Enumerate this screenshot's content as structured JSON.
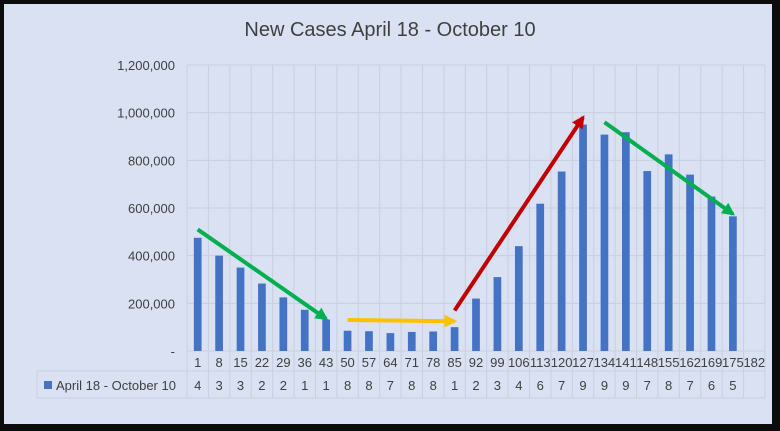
{
  "chart_data": {
    "type": "bar",
    "title": "New Cases April 18 - October 10",
    "xlabel": "",
    "ylabel": "",
    "ylim": [
      0,
      1200000
    ],
    "yticks": [
      0,
      200000,
      400000,
      600000,
      800000,
      1000000,
      1200000
    ],
    "ytick_labels": [
      "-",
      "200,000",
      "400,000",
      "600,000",
      "800,000",
      "1,000,000",
      "1,200,000"
    ],
    "grid": true,
    "legend_position": "data-table-left",
    "categories": [
      "1",
      "8",
      "15",
      "22",
      "29",
      "36",
      "43",
      "50",
      "57",
      "64",
      "71",
      "78",
      "85",
      "92",
      "99",
      "106",
      "113",
      "120",
      "127",
      "134",
      "141",
      "148",
      "155",
      "162",
      "169",
      "175",
      "182"
    ],
    "series": [
      {
        "name": "April 18 - October 10",
        "color": "#4472c4",
        "values": [
          475000,
          400000,
          350000,
          283000,
          225000,
          173000,
          132000,
          85000,
          83000,
          75000,
          80000,
          82000,
          100000,
          220000,
          310000,
          440000,
          618000,
          753000,
          950000,
          908000,
          918000,
          755000,
          825000,
          740000,
          648000,
          565000,
          null
        ],
        "table_values": [
          "4",
          "3",
          "3",
          "2",
          "2",
          "1",
          "1",
          "8",
          "8",
          "7",
          "8",
          "8",
          "1",
          "2",
          "3",
          "4",
          "6",
          "7",
          "9",
          "9",
          "9",
          "7",
          "8",
          "7",
          "6",
          "5",
          ""
        ]
      }
    ],
    "annotations": [
      {
        "type": "arrow",
        "color": "#00b050",
        "from": {
          "x": "1",
          "y": 510000
        },
        "to": {
          "x": "43",
          "y": 135000
        }
      },
      {
        "type": "arrow",
        "color": "#ffc000",
        "from": {
          "x": "50",
          "y": 130000
        },
        "to": {
          "x": "85",
          "y": 125000
        }
      },
      {
        "type": "arrow",
        "color": "#c00000",
        "from": {
          "x": "85",
          "y": 170000
        },
        "to": {
          "x": "127",
          "y": 980000
        }
      },
      {
        "type": "arrow",
        "color": "#00b050",
        "from": {
          "x": "134",
          "y": 960000
        },
        "to": {
          "x": "175",
          "y": 575000
        }
      }
    ]
  }
}
